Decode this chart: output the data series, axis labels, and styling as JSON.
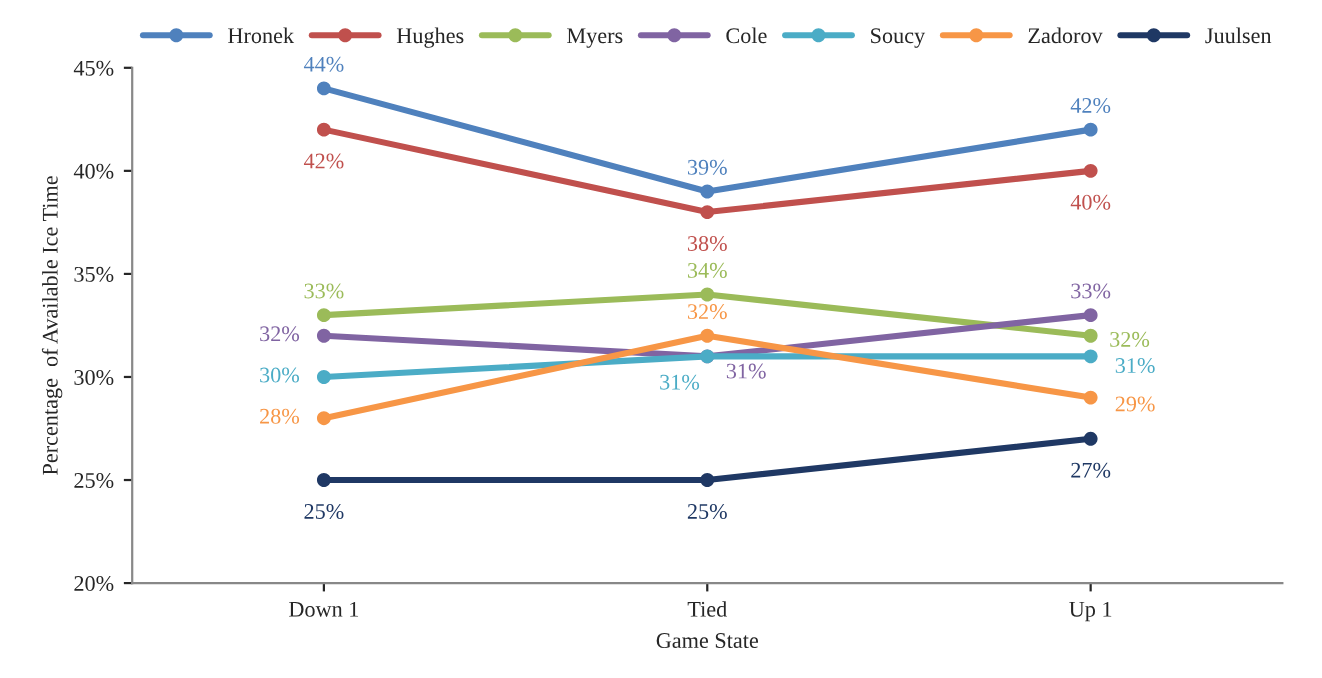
{
  "chart_data": {
    "type": "line",
    "xlabel": "Game State",
    "ylabel": "Percentage  of Available Ice Time",
    "categories": [
      "Down 1",
      "Tied",
      "Up 1"
    ],
    "series": [
      {
        "name": "Hronek",
        "color": "#4f81bd",
        "values": [
          44,
          39,
          42
        ],
        "value_labels": [
          "44%",
          "39%",
          "42%"
        ]
      },
      {
        "name": "Hughes",
        "color": "#c0504d",
        "values": [
          42,
          38,
          40
        ],
        "value_labels": [
          "42%",
          "38%",
          "40%"
        ]
      },
      {
        "name": "Myers",
        "color": "#9bbb59",
        "values": [
          33,
          34,
          32
        ],
        "value_labels": [
          "33%",
          "34%",
          "32%"
        ]
      },
      {
        "name": "Cole",
        "color": "#8064a2",
        "values": [
          32,
          31,
          33
        ],
        "value_labels": [
          "32%",
          "31%",
          "33%"
        ]
      },
      {
        "name": "Soucy",
        "color": "#4bacc6",
        "values": [
          30,
          31,
          31
        ],
        "value_labels": [
          "30%",
          "31%",
          "31%"
        ]
      },
      {
        "name": "Zadorov",
        "color": "#f79646",
        "values": [
          28,
          32,
          29
        ],
        "value_labels": [
          "28%",
          "32%",
          "29%"
        ]
      },
      {
        "name": "Juulsen",
        "color": "#1f3864",
        "values": [
          25,
          25,
          27
        ],
        "value_labels": [
          "25%",
          "25%",
          "27%"
        ]
      }
    ],
    "ylim": [
      20,
      45
    ],
    "yticks": [
      {
        "value": 20,
        "label": "20%"
      },
      {
        "value": 25,
        "label": "25%"
      },
      {
        "value": 30,
        "label": "30%"
      },
      {
        "value": 35,
        "label": "35%"
      },
      {
        "value": 40,
        "label": "40%"
      },
      {
        "value": 45,
        "label": "45%"
      }
    ],
    "grid": false,
    "legend": "top",
    "marker": "circle",
    "line_style": "solid"
  }
}
